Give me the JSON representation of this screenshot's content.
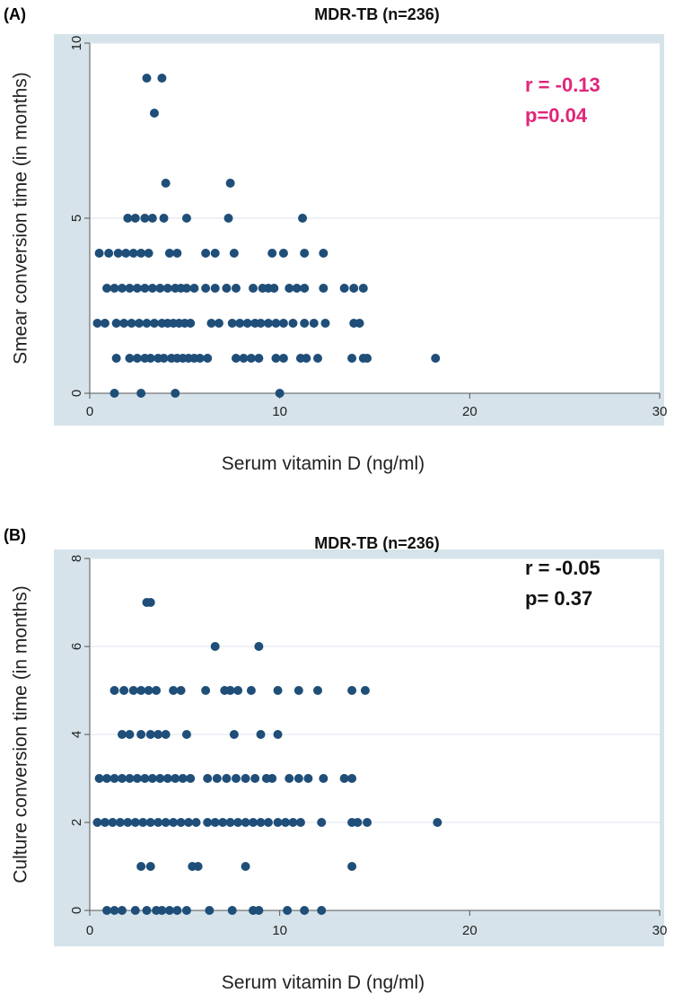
{
  "colors": {
    "marker": "#1f4e79",
    "band": "#d6e3ea",
    "plot_bg": "#ffffff",
    "annot_a": "#e0257a",
    "annot_b": "#111111"
  },
  "chart_data": [
    {
      "type": "scatter",
      "panel_label": "(A)",
      "title": "MDR-TB (n=236)",
      "xlabel": "Serum vitamin D (ng/ml)",
      "ylabel": "Smear  conversion time (in months)",
      "xlim": [
        0,
        30
      ],
      "ylim": [
        0,
        10
      ],
      "xticks": [
        "0",
        "10",
        "20",
        "30"
      ],
      "xtick_values": [
        0,
        10,
        20,
        30
      ],
      "yticks": [
        "0",
        "5",
        "10"
      ],
      "ytick_values": [
        0,
        5,
        10
      ],
      "annotation": {
        "line1": "r = -0.13",
        "line2": "p=0.04",
        "color": "#e0257a"
      },
      "points": [
        [
          1.3,
          0
        ],
        [
          2.7,
          0
        ],
        [
          4.5,
          0
        ],
        [
          10.0,
          0
        ],
        [
          1.4,
          1
        ],
        [
          2.1,
          1
        ],
        [
          2.5,
          1
        ],
        [
          2.9,
          1
        ],
        [
          3.2,
          1
        ],
        [
          3.6,
          1
        ],
        [
          3.9,
          1
        ],
        [
          4.3,
          1
        ],
        [
          4.6,
          1
        ],
        [
          4.9,
          1
        ],
        [
          5.2,
          1
        ],
        [
          5.5,
          1
        ],
        [
          5.8,
          1
        ],
        [
          6.2,
          1
        ],
        [
          7.7,
          1
        ],
        [
          8.1,
          1
        ],
        [
          8.5,
          1
        ],
        [
          8.9,
          1
        ],
        [
          9.8,
          1
        ],
        [
          10.2,
          1
        ],
        [
          11.1,
          1
        ],
        [
          11.4,
          1
        ],
        [
          12.0,
          1
        ],
        [
          13.8,
          1
        ],
        [
          14.4,
          1
        ],
        [
          14.6,
          1
        ],
        [
          18.2,
          1
        ],
        [
          0.4,
          2
        ],
        [
          0.8,
          2
        ],
        [
          1.4,
          2
        ],
        [
          1.8,
          2
        ],
        [
          2.2,
          2
        ],
        [
          2.6,
          2
        ],
        [
          3.0,
          2
        ],
        [
          3.4,
          2
        ],
        [
          3.8,
          2
        ],
        [
          4.1,
          2
        ],
        [
          4.4,
          2
        ],
        [
          4.7,
          2
        ],
        [
          5.0,
          2
        ],
        [
          5.3,
          2
        ],
        [
          6.4,
          2
        ],
        [
          6.8,
          2
        ],
        [
          7.5,
          2
        ],
        [
          7.9,
          2
        ],
        [
          8.3,
          2
        ],
        [
          8.7,
          2
        ],
        [
          9.0,
          2
        ],
        [
          9.4,
          2
        ],
        [
          9.8,
          2
        ],
        [
          10.2,
          2
        ],
        [
          10.7,
          2
        ],
        [
          11.3,
          2
        ],
        [
          11.8,
          2
        ],
        [
          12.4,
          2
        ],
        [
          13.9,
          2
        ],
        [
          14.2,
          2
        ],
        [
          0.9,
          3
        ],
        [
          1.3,
          3
        ],
        [
          1.7,
          3
        ],
        [
          2.1,
          3
        ],
        [
          2.5,
          3
        ],
        [
          2.9,
          3
        ],
        [
          3.3,
          3
        ],
        [
          3.7,
          3
        ],
        [
          4.1,
          3
        ],
        [
          4.5,
          3
        ],
        [
          4.8,
          3
        ],
        [
          5.1,
          3
        ],
        [
          5.5,
          3
        ],
        [
          6.1,
          3
        ],
        [
          6.6,
          3
        ],
        [
          7.2,
          3
        ],
        [
          7.7,
          3
        ],
        [
          8.6,
          3
        ],
        [
          9.1,
          3
        ],
        [
          9.4,
          3
        ],
        [
          9.7,
          3
        ],
        [
          10.5,
          3
        ],
        [
          10.9,
          3
        ],
        [
          11.3,
          3
        ],
        [
          12.3,
          3
        ],
        [
          13.4,
          3
        ],
        [
          13.9,
          3
        ],
        [
          14.4,
          3
        ],
        [
          0.5,
          4
        ],
        [
          1.0,
          4
        ],
        [
          1.5,
          4
        ],
        [
          1.9,
          4
        ],
        [
          2.3,
          4
        ],
        [
          2.7,
          4
        ],
        [
          3.1,
          4
        ],
        [
          4.2,
          4
        ],
        [
          4.6,
          4
        ],
        [
          6.1,
          4
        ],
        [
          6.6,
          4
        ],
        [
          7.6,
          4
        ],
        [
          9.6,
          4
        ],
        [
          10.2,
          4
        ],
        [
          11.3,
          4
        ],
        [
          12.3,
          4
        ],
        [
          2.0,
          5
        ],
        [
          2.4,
          5
        ],
        [
          2.9,
          5
        ],
        [
          3.3,
          5
        ],
        [
          3.9,
          5
        ],
        [
          5.1,
          5
        ],
        [
          7.3,
          5
        ],
        [
          11.2,
          5
        ],
        [
          4.0,
          6
        ],
        [
          7.4,
          6
        ],
        [
          3.4,
          8
        ],
        [
          3.0,
          9
        ],
        [
          3.8,
          9
        ]
      ]
    },
    {
      "type": "scatter",
      "panel_label": "(B)",
      "title": "MDR-TB (n=236)",
      "xlabel": "Serum vitamin D (ng/ml)",
      "ylabel": "Culture conversion time (in months)",
      "xlim": [
        0,
        30
      ],
      "ylim": [
        0,
        8
      ],
      "xticks": [
        "0",
        "10",
        "20",
        "30"
      ],
      "xtick_values": [
        0,
        10,
        20,
        30
      ],
      "yticks": [
        "0",
        "2",
        "4",
        "6",
        "8"
      ],
      "ytick_values": [
        0,
        2,
        4,
        6,
        8
      ],
      "annotation": {
        "line1": "r = -0.05",
        "line2": "p= 0.37",
        "color": "#111111"
      },
      "points": [
        [
          0.9,
          0
        ],
        [
          1.3,
          0
        ],
        [
          1.7,
          0
        ],
        [
          2.4,
          0
        ],
        [
          3.0,
          0
        ],
        [
          3.5,
          0
        ],
        [
          3.8,
          0
        ],
        [
          4.2,
          0
        ],
        [
          4.6,
          0
        ],
        [
          5.1,
          0
        ],
        [
          6.3,
          0
        ],
        [
          7.5,
          0
        ],
        [
          8.6,
          0
        ],
        [
          8.9,
          0
        ],
        [
          10.4,
          0
        ],
        [
          11.3,
          0
        ],
        [
          12.2,
          0
        ],
        [
          2.7,
          1
        ],
        [
          3.2,
          1
        ],
        [
          5.4,
          1
        ],
        [
          5.7,
          1
        ],
        [
          8.2,
          1
        ],
        [
          13.8,
          1
        ],
        [
          0.4,
          2
        ],
        [
          0.8,
          2
        ],
        [
          1.2,
          2
        ],
        [
          1.6,
          2
        ],
        [
          2.0,
          2
        ],
        [
          2.4,
          2
        ],
        [
          2.8,
          2
        ],
        [
          3.2,
          2
        ],
        [
          3.6,
          2
        ],
        [
          4.0,
          2
        ],
        [
          4.4,
          2
        ],
        [
          4.8,
          2
        ],
        [
          5.2,
          2
        ],
        [
          5.6,
          2
        ],
        [
          6.2,
          2
        ],
        [
          6.6,
          2
        ],
        [
          7.0,
          2
        ],
        [
          7.4,
          2
        ],
        [
          7.8,
          2
        ],
        [
          8.2,
          2
        ],
        [
          8.6,
          2
        ],
        [
          9.0,
          2
        ],
        [
          9.4,
          2
        ],
        [
          9.9,
          2
        ],
        [
          10.3,
          2
        ],
        [
          10.7,
          2
        ],
        [
          11.1,
          2
        ],
        [
          12.2,
          2
        ],
        [
          13.8,
          2
        ],
        [
          14.1,
          2
        ],
        [
          14.6,
          2
        ],
        [
          18.3,
          2
        ],
        [
          0.5,
          3
        ],
        [
          0.9,
          3
        ],
        [
          1.3,
          3
        ],
        [
          1.7,
          3
        ],
        [
          2.1,
          3
        ],
        [
          2.5,
          3
        ],
        [
          2.9,
          3
        ],
        [
          3.3,
          3
        ],
        [
          3.7,
          3
        ],
        [
          4.1,
          3
        ],
        [
          4.5,
          3
        ],
        [
          4.9,
          3
        ],
        [
          5.3,
          3
        ],
        [
          6.2,
          3
        ],
        [
          6.7,
          3
        ],
        [
          7.2,
          3
        ],
        [
          7.7,
          3
        ],
        [
          8.2,
          3
        ],
        [
          8.7,
          3
        ],
        [
          9.3,
          3
        ],
        [
          9.6,
          3
        ],
        [
          10.5,
          3
        ],
        [
          11.0,
          3
        ],
        [
          11.5,
          3
        ],
        [
          12.3,
          3
        ],
        [
          13.4,
          3
        ],
        [
          13.8,
          3
        ],
        [
          1.7,
          4
        ],
        [
          2.1,
          4
        ],
        [
          2.7,
          4
        ],
        [
          3.2,
          4
        ],
        [
          3.6,
          4
        ],
        [
          4.0,
          4
        ],
        [
          5.1,
          4
        ],
        [
          7.6,
          4
        ],
        [
          9.0,
          4
        ],
        [
          9.9,
          4
        ],
        [
          1.3,
          5
        ],
        [
          1.8,
          5
        ],
        [
          2.3,
          5
        ],
        [
          2.7,
          5
        ],
        [
          3.1,
          5
        ],
        [
          3.5,
          5
        ],
        [
          4.4,
          5
        ],
        [
          4.8,
          5
        ],
        [
          6.1,
          5
        ],
        [
          7.1,
          5
        ],
        [
          7.4,
          5
        ],
        [
          7.8,
          5
        ],
        [
          8.5,
          5
        ],
        [
          9.9,
          5
        ],
        [
          11.0,
          5
        ],
        [
          12.0,
          5
        ],
        [
          13.8,
          5
        ],
        [
          14.5,
          5
        ],
        [
          6.6,
          6
        ],
        [
          8.9,
          6
        ],
        [
          3.0,
          7
        ],
        [
          3.2,
          7
        ]
      ]
    }
  ]
}
